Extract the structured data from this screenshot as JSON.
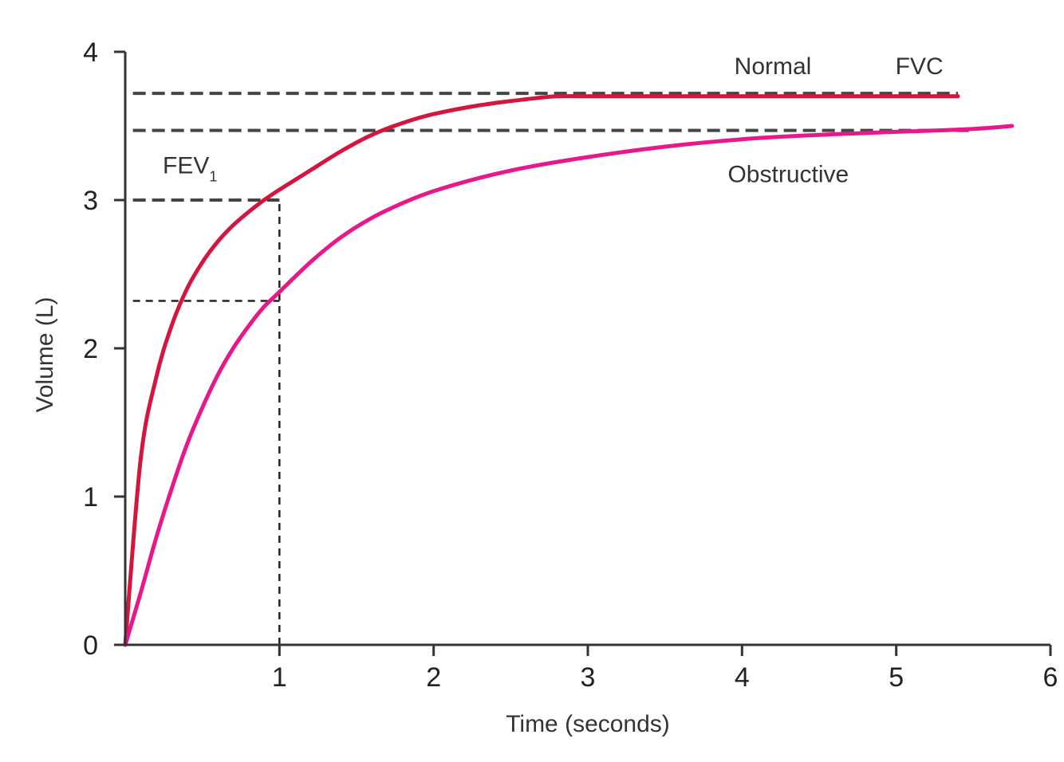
{
  "chart_data": {
    "type": "line",
    "xlabel": "Time (seconds)",
    "ylabel": "Volume (L)",
    "xlim": [
      0,
      6
    ],
    "ylim": [
      0,
      4
    ],
    "x_ticks": [
      1,
      2,
      3,
      4,
      5,
      6
    ],
    "y_ticks": [
      0,
      1,
      2,
      3,
      4
    ],
    "grid": false,
    "colors": {
      "normal": "#d4163f",
      "obstructive": "#e8178a",
      "reference": "#444444"
    },
    "series": [
      {
        "name": "Normal",
        "x": [
          0.0,
          0.1,
          0.2,
          0.3,
          0.4,
          0.5,
          0.6,
          0.7,
          0.8,
          0.9,
          1.0,
          1.2,
          1.4,
          1.6,
          1.8,
          2.0,
          2.3,
          2.6,
          2.8,
          3.0,
          3.5,
          4.0,
          4.5,
          5.0,
          5.4
        ],
        "y": [
          0.0,
          1.25,
          1.8,
          2.15,
          2.4,
          2.58,
          2.72,
          2.83,
          2.92,
          3.0,
          3.07,
          3.2,
          3.33,
          3.44,
          3.52,
          3.58,
          3.64,
          3.68,
          3.7,
          3.7,
          3.7,
          3.7,
          3.7,
          3.7,
          3.7
        ]
      },
      {
        "name": "Obstructive",
        "x": [
          0.0,
          0.1,
          0.2,
          0.3,
          0.4,
          0.5,
          0.6,
          0.7,
          0.8,
          0.9,
          1.0,
          1.2,
          1.4,
          1.6,
          1.8,
          2.0,
          2.3,
          2.6,
          3.0,
          3.5,
          4.0,
          4.5,
          5.0,
          5.5,
          5.75
        ],
        "y": [
          0.0,
          0.35,
          0.72,
          1.05,
          1.35,
          1.6,
          1.82,
          2.0,
          2.15,
          2.28,
          2.38,
          2.58,
          2.75,
          2.88,
          2.98,
          3.06,
          3.15,
          3.22,
          3.29,
          3.36,
          3.41,
          3.44,
          3.46,
          3.48,
          3.5
        ]
      }
    ],
    "reference_lines": [
      {
        "kind": "horizontal",
        "y": 3.72,
        "x_from": 0.05,
        "x_to": 5.4,
        "style": "dashed-thick"
      },
      {
        "kind": "horizontal",
        "y": 3.47,
        "x_from": 0.05,
        "x_to": 5.5,
        "style": "dashed-thick"
      },
      {
        "kind": "horizontal",
        "y": 3.0,
        "x_from": 0.05,
        "x_to": 1.0,
        "style": "dashed-thick"
      },
      {
        "kind": "horizontal",
        "y": 2.32,
        "x_from": 0.05,
        "x_to": 1.0,
        "style": "dashed-thin"
      },
      {
        "kind": "vertical",
        "x": 1.0,
        "y_from": 0,
        "y_to": 3.0,
        "style": "dashed-thin"
      }
    ],
    "annotations": [
      {
        "text": "Normal",
        "x": 4.2,
        "y": 3.85,
        "anchor": "middle"
      },
      {
        "text": "FVC",
        "x": 5.15,
        "y": 3.85,
        "anchor": "middle"
      },
      {
        "text": "Obstructive",
        "x": 4.3,
        "y": 3.12,
        "anchor": "middle"
      },
      {
        "text": "FEV",
        "sub": "1",
        "x": 0.42,
        "y": 3.18,
        "anchor": "middle"
      }
    ]
  }
}
